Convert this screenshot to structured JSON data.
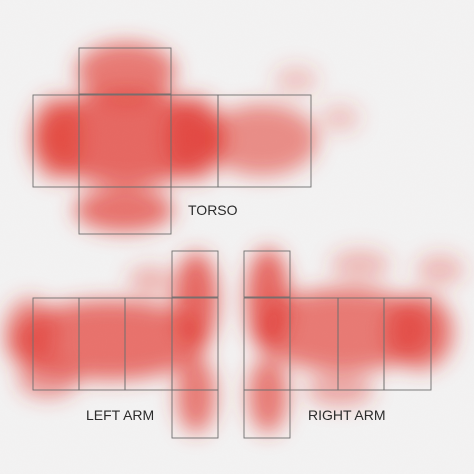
{
  "template": {
    "labels": {
      "torso": "TORSO",
      "left_arm": "LEFT ARM",
      "right_arm": "RIGHT ARM"
    },
    "colors": {
      "background": "#f3f2f2",
      "overlay": "#e23a32",
      "lines": "#6e6e6e",
      "text": "#2b2b2b"
    }
  }
}
